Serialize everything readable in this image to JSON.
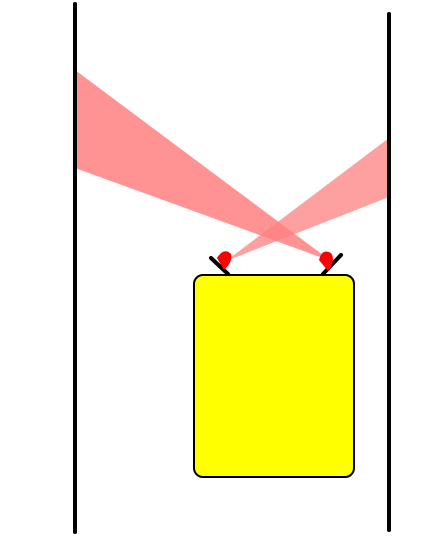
{
  "scene": {
    "background_color": "#ffffff",
    "walls": [
      {
        "id": "left",
        "color": "#000000"
      },
      {
        "id": "right",
        "color": "#000000"
      }
    ],
    "robot": {
      "body_color": "#ffff00",
      "outline_color": "#000000",
      "sensors": [
        {
          "id": "left",
          "color": "#ff0000",
          "beam_color": "#ff8080"
        },
        {
          "id": "right",
          "color": "#ff0000",
          "beam_color": "#ff8080"
        }
      ]
    }
  }
}
